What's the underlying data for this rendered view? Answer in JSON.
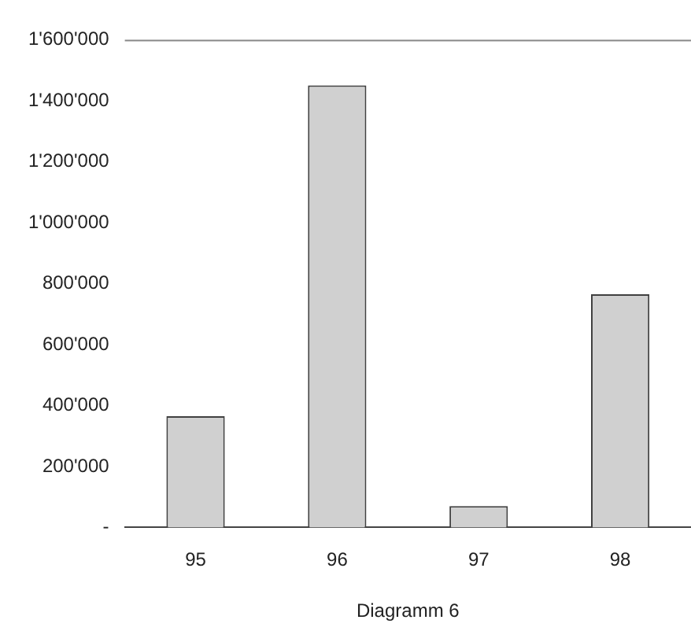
{
  "chart_data": {
    "type": "bar",
    "xlabel": "Diagramm 6",
    "categories": [
      "95",
      "96",
      "97",
      "98"
    ],
    "values": [
      365000,
      1450000,
      70000,
      765000
    ],
    "color": "#d0d0d0",
    "ylim": [
      0,
      1600000
    ],
    "yticks": [
      {
        "value": 0,
        "label": "-"
      },
      {
        "value": 200000,
        "label": "200'000"
      },
      {
        "value": 400000,
        "label": "400'000"
      },
      {
        "value": 600000,
        "label": "600'000"
      },
      {
        "value": 800000,
        "label": "800'000"
      },
      {
        "value": 1000000,
        "label": "1'000'000"
      },
      {
        "value": 1200000,
        "label": "1'200'000"
      },
      {
        "value": 1400000,
        "label": "1'400'000"
      },
      {
        "value": 1600000,
        "label": "1'600'000"
      }
    ],
    "grid": false,
    "legend": false
  }
}
